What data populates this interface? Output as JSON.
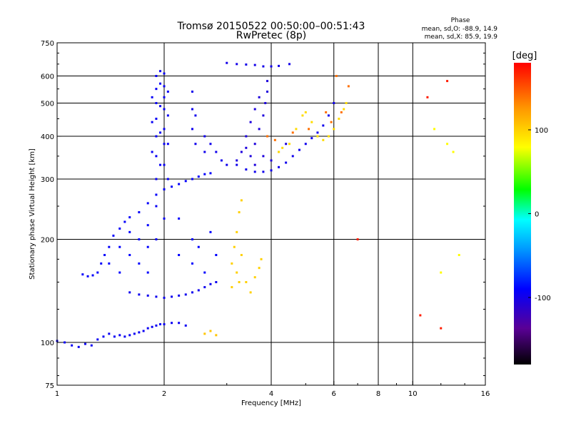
{
  "chart_data": {
    "type": "scatter",
    "title": "Tromsø 20150522 00:50:00–00:51:43",
    "subtitle": "RwPretec (8p)",
    "xlabel": "Frequency [MHz]",
    "ylabel": "Stationary phase Virtual Height [km]",
    "x_scale": "log",
    "y_scale": "log",
    "xlim": [
      1,
      16
    ],
    "ylim": [
      75,
      750
    ],
    "x_ticks": [
      1,
      2,
      4,
      6,
      8,
      10,
      16
    ],
    "x_gridlines": [
      2,
      4,
      6,
      8,
      10
    ],
    "y_ticks": [
      75,
      100,
      200,
      300,
      400,
      500,
      600,
      750
    ],
    "y_gridlines": [
      100,
      200,
      300,
      400,
      500,
      600
    ],
    "stats": {
      "header": "Phase",
      "line_o": "mean, sd,O:  -88.9, 14.9",
      "line_x": "mean, sd,X:   85.9, 19.9"
    },
    "colorbar": {
      "label": "[deg]",
      "range": [
        -180,
        180
      ],
      "ticks": [
        100,
        0,
        -100
      ],
      "tick_labels": [
        "100",
        "0",
        "-100"
      ]
    },
    "series": [
      {
        "phase": -95,
        "points": [
          [
            1.0,
            101
          ],
          [
            1.05,
            100
          ],
          [
            1.1,
            98
          ],
          [
            1.15,
            97
          ],
          [
            1.2,
            99
          ],
          [
            1.25,
            98
          ],
          [
            1.3,
            102
          ],
          [
            1.35,
            104
          ],
          [
            1.4,
            106
          ],
          [
            1.45,
            104
          ],
          [
            1.5,
            105
          ],
          [
            1.55,
            104
          ],
          [
            1.6,
            105
          ],
          [
            1.65,
            106
          ],
          [
            1.7,
            107
          ],
          [
            1.75,
            108
          ],
          [
            1.8,
            110
          ],
          [
            1.85,
            111
          ],
          [
            1.9,
            112
          ],
          [
            1.95,
            113
          ],
          [
            2.0,
            113
          ],
          [
            2.1,
            114
          ],
          [
            2.2,
            114
          ],
          [
            2.3,
            112
          ]
        ]
      },
      {
        "phase": -92,
        "points": [
          [
            1.18,
            158
          ],
          [
            1.22,
            156
          ],
          [
            1.26,
            157
          ],
          [
            1.3,
            160
          ],
          [
            1.33,
            170
          ],
          [
            1.36,
            180
          ],
          [
            1.4,
            190
          ],
          [
            1.44,
            205
          ],
          [
            1.5,
            215
          ],
          [
            1.55,
            225
          ],
          [
            1.6,
            232
          ],
          [
            1.7,
            240
          ],
          [
            1.8,
            255
          ],
          [
            1.9,
            270
          ],
          [
            2.0,
            280
          ],
          [
            2.1,
            285
          ],
          [
            2.2,
            290
          ],
          [
            2.3,
            296
          ],
          [
            2.4,
            300
          ],
          [
            2.5,
            305
          ],
          [
            2.6,
            310
          ],
          [
            2.7,
            312
          ]
        ]
      },
      {
        "phase": -97,
        "points": [
          [
            1.6,
            140
          ],
          [
            1.7,
            138
          ],
          [
            1.8,
            137
          ],
          [
            1.9,
            136
          ],
          [
            2.0,
            135
          ],
          [
            2.1,
            136
          ],
          [
            2.2,
            137
          ],
          [
            2.3,
            138
          ],
          [
            2.4,
            140
          ],
          [
            2.5,
            142
          ],
          [
            2.6,
            145
          ],
          [
            2.7,
            148
          ],
          [
            2.8,
            150
          ]
        ]
      },
      {
        "phase": -94,
        "points": [
          [
            1.9,
            200
          ],
          [
            1.9,
            250
          ],
          [
            1.9,
            300
          ],
          [
            1.9,
            350
          ],
          [
            1.9,
            400
          ],
          [
            1.9,
            450
          ],
          [
            1.9,
            500
          ],
          [
            1.9,
            550
          ],
          [
            1.9,
            600
          ],
          [
            1.95,
            620
          ],
          [
            2.0,
            610
          ],
          [
            2.0,
            560
          ],
          [
            2.0,
            520
          ],
          [
            2.0,
            480
          ],
          [
            2.0,
            420
          ],
          [
            2.0,
            380
          ],
          [
            2.0,
            330
          ],
          [
            2.0,
            280
          ],
          [
            2.0,
            230
          ],
          [
            2.05,
            300
          ],
          [
            2.05,
            380
          ],
          [
            2.05,
            460
          ],
          [
            2.05,
            540
          ],
          [
            1.85,
            360
          ],
          [
            1.85,
            440
          ],
          [
            1.85,
            520
          ],
          [
            1.95,
            330
          ],
          [
            1.95,
            410
          ],
          [
            1.95,
            490
          ],
          [
            1.95,
            570
          ]
        ]
      },
      {
        "phase": -90,
        "points": [
          [
            1.4,
            170
          ],
          [
            1.5,
            190
          ],
          [
            1.5,
            160
          ],
          [
            1.6,
            180
          ],
          [
            1.6,
            210
          ],
          [
            1.7,
            200
          ],
          [
            1.7,
            170
          ],
          [
            1.8,
            220
          ],
          [
            1.8,
            190
          ],
          [
            1.8,
            160
          ],
          [
            2.2,
            180
          ],
          [
            2.2,
            230
          ],
          [
            2.4,
            200
          ],
          [
            2.4,
            170
          ],
          [
            2.5,
            190
          ],
          [
            2.6,
            160
          ],
          [
            2.7,
            210
          ],
          [
            2.8,
            180
          ]
        ]
      },
      {
        "phase": -98,
        "points": [
          [
            2.4,
            420
          ],
          [
            2.4,
            480
          ],
          [
            2.4,
            540
          ],
          [
            2.45,
            380
          ],
          [
            2.45,
            460
          ],
          [
            2.6,
            360
          ],
          [
            2.6,
            400
          ],
          [
            2.7,
            380
          ],
          [
            2.8,
            360
          ],
          [
            2.9,
            340
          ],
          [
            3.0,
            330
          ],
          [
            3.2,
            330
          ],
          [
            3.4,
            320
          ],
          [
            3.6,
            315
          ],
          [
            3.8,
            315
          ],
          [
            4.0,
            318
          ],
          [
            4.2,
            325
          ],
          [
            4.4,
            335
          ],
          [
            4.6,
            350
          ],
          [
            4.8,
            365
          ],
          [
            5.0,
            380
          ],
          [
            5.2,
            395
          ],
          [
            5.4,
            410
          ],
          [
            5.6,
            430
          ],
          [
            5.8,
            460
          ],
          [
            6.0,
            500
          ]
        ]
      },
      {
        "phase": -105,
        "points": [
          [
            3.5,
            350
          ],
          [
            3.6,
            380
          ],
          [
            3.7,
            420
          ],
          [
            3.8,
            460
          ],
          [
            3.85,
            500
          ],
          [
            3.9,
            540
          ],
          [
            3.9,
            580
          ],
          [
            3.4,
            400
          ],
          [
            3.5,
            440
          ],
          [
            3.6,
            480
          ],
          [
            3.7,
            520
          ],
          [
            3.3,
            360
          ],
          [
            3.2,
            340
          ],
          [
            3.4,
            370
          ],
          [
            3.6,
            330
          ],
          [
            3.8,
            350
          ],
          [
            4.0,
            340
          ],
          [
            4.2,
            360
          ],
          [
            4.4,
            380
          ]
        ]
      },
      {
        "phase": -100,
        "points": [
          [
            3.2,
            650
          ],
          [
            3.4,
            648
          ],
          [
            3.6,
            646
          ],
          [
            3.8,
            640
          ],
          [
            4.0,
            640
          ],
          [
            4.2,
            642
          ],
          [
            4.5,
            650
          ],
          [
            3.0,
            655
          ]
        ]
      },
      {
        "phase": 100,
        "points": [
          [
            3.1,
            170
          ],
          [
            3.15,
            190
          ],
          [
            3.2,
            210
          ],
          [
            3.25,
            240
          ],
          [
            3.3,
            260
          ],
          [
            3.2,
            160
          ],
          [
            3.25,
            150
          ],
          [
            3.1,
            145
          ],
          [
            3.3,
            180
          ],
          [
            3.4,
            150
          ],
          [
            3.5,
            140
          ],
          [
            3.6,
            155
          ],
          [
            3.7,
            165
          ],
          [
            3.75,
            175
          ]
        ]
      },
      {
        "phase": 95,
        "points": [
          [
            4.2,
            360
          ],
          [
            4.3,
            370
          ],
          [
            4.5,
            380
          ],
          [
            4.7,
            420
          ],
          [
            4.9,
            460
          ],
          [
            5.0,
            470
          ],
          [
            5.2,
            440
          ],
          [
            5.4,
            400
          ],
          [
            5.6,
            390
          ],
          [
            5.8,
            400
          ],
          [
            6.0,
            420
          ],
          [
            6.2,
            450
          ],
          [
            6.4,
            480
          ],
          [
            6.5,
            500
          ]
        ]
      },
      {
        "phase": 140,
        "points": [
          [
            3.9,
            400
          ],
          [
            4.1,
            390
          ],
          [
            4.6,
            410
          ],
          [
            5.1,
            420
          ],
          [
            5.9,
            440
          ],
          [
            6.3,
            470
          ],
          [
            6.6,
            560
          ],
          [
            5.7,
            470
          ],
          [
            6.1,
            600
          ]
        ]
      },
      {
        "phase": 105,
        "points": [
          [
            2.6,
            106
          ],
          [
            2.7,
            108
          ],
          [
            2.8,
            105
          ]
        ]
      },
      {
        "phase": 170,
        "points": [
          [
            11.0,
            520
          ],
          [
            12.5,
            580
          ],
          [
            12.0,
            110
          ],
          [
            10.5,
            120
          ],
          [
            7.0,
            200
          ]
        ]
      },
      {
        "phase": 80,
        "points": [
          [
            12.0,
            160
          ],
          [
            11.5,
            420
          ],
          [
            13.0,
            360
          ],
          [
            12.5,
            380
          ],
          [
            13.5,
            180
          ]
        ]
      }
    ]
  }
}
